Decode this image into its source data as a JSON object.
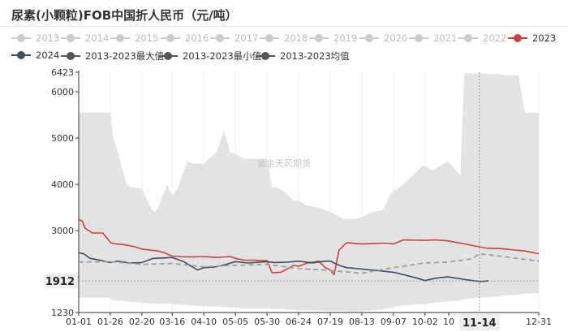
{
  "header": {
    "title": "尿素(小颗粒)FOB中国折人民币（元/吨）"
  },
  "colors": {
    "band": "#e3e3e3",
    "inactive": "#cccccc",
    "series_2023": "#d04040",
    "series_2024": "#3f4e5e",
    "series_avg": "#a0a0a0",
    "legend_dark": "#3f4e5e",
    "legend_mid": "#555555",
    "tooltip_tag": "#eeeeee"
  },
  "legend": [
    {
      "label": "2013",
      "active": false
    },
    {
      "label": "2014",
      "active": false
    },
    {
      "label": "2015",
      "active": false
    },
    {
      "label": "2016",
      "active": false
    },
    {
      "label": "2017",
      "active": false
    },
    {
      "label": "2018",
      "active": false
    },
    {
      "label": "2019",
      "active": false
    },
    {
      "label": "2020",
      "active": false
    },
    {
      "label": "2021",
      "active": false
    },
    {
      "label": "2022",
      "active": false
    },
    {
      "label": "2023",
      "active": true
    },
    {
      "label": "2024",
      "active": true
    },
    {
      "label": "2013-2023最大值",
      "active": true
    },
    {
      "label": "2013-2023最小值",
      "active": true
    },
    {
      "label": "2013-2023均值",
      "active": true
    }
  ],
  "watermark": "紫金天风期货",
  "chart_data": {
    "type": "line",
    "title": "尿素(小颗粒)FOB中国折人民币（元/吨）",
    "xlabel": "",
    "ylabel": "",
    "x_ticks": [
      "01-01",
      "01-26",
      "02-20",
      "03-16",
      "04-10",
      "05-05",
      "05-30",
      "06-24",
      "07-19",
      "08-13",
      "09-07",
      "10-02",
      "10",
      "11-14",
      "12-31"
    ],
    "y_ticks": [
      "1230",
      "2000",
      "3000",
      "4000",
      "5000",
      "6000",
      "6423"
    ],
    "ylim": [
      1230,
      6423
    ],
    "crosshair": {
      "x_label": "11-14",
      "y_label": "1912"
    },
    "grid": "vertical",
    "band": {
      "name": "2013-2023 最大值/最小值",
      "x": [
        "01-01",
        "01-26",
        "01-28",
        "02-08",
        "02-10",
        "02-20",
        "02-27",
        "03-02",
        "03-04",
        "03-12",
        "03-16",
        "03-20",
        "03-28",
        "04-01",
        "04-10",
        "04-20",
        "04-26",
        "05-01",
        "05-05",
        "05-12",
        "05-30",
        "06-03",
        "06-10",
        "06-20",
        "06-24",
        "06-30",
        "07-10",
        "07-19",
        "07-30",
        "08-08",
        "08-13",
        "08-22",
        "08-30",
        "09-05",
        "09-07",
        "09-15",
        "09-30",
        "10-02",
        "10-08",
        "10-20",
        "10-30",
        "11-02",
        "11-14",
        "11-30",
        "12-05",
        "12-15",
        "12-20",
        "12-31"
      ],
      "max": [
        5550,
        5550,
        5050,
        4000,
        3950,
        3900,
        3500,
        3400,
        3450,
        4000,
        3750,
        3900,
        4500,
        4450,
        4450,
        4700,
        5150,
        4700,
        4650,
        4550,
        4550,
        3950,
        3900,
        3650,
        3650,
        3550,
        3500,
        3400,
        3250,
        3250,
        3300,
        3400,
        3450,
        3800,
        3850,
        4000,
        4400,
        4400,
        4300,
        4500,
        4200,
        6400,
        6400,
        6380,
        6350,
        6350,
        5550,
        5550
      ],
      "min": [
        1550,
        1550,
        1490,
        1480,
        1460,
        1440,
        1430,
        1420,
        1420,
        1420,
        1410,
        1400,
        1390,
        1380,
        1370,
        1360,
        1350,
        1340,
        1330,
        1320,
        1320,
        1310,
        1300,
        1290,
        1280,
        1280,
        1270,
        1260,
        1260,
        1250,
        1260,
        1280,
        1300,
        1330,
        1350,
        1380,
        1410,
        1410,
        1440,
        1470,
        1500,
        1520,
        1550,
        1580,
        1600,
        1620,
        1640,
        1650
      ]
    },
    "series": [
      {
        "name": "2023",
        "x": [
          "01-01",
          "01-04",
          "01-06",
          "01-12",
          "01-20",
          "01-26",
          "01-28",
          "02-05",
          "02-15",
          "02-20",
          "02-27",
          "03-05",
          "03-10",
          "03-16",
          "03-22",
          "03-30",
          "04-10",
          "04-20",
          "05-01",
          "05-05",
          "05-12",
          "05-20",
          "05-30",
          "06-03",
          "06-10",
          "06-20",
          "06-24",
          "07-01",
          "07-10",
          "07-15",
          "07-19",
          "07-22",
          "07-26",
          "08-01",
          "08-13",
          "08-20",
          "09-01",
          "09-07",
          "09-15",
          "10-02",
          "10-10",
          "10-20",
          "11-01",
          "11-14",
          "11-20",
          "12-01",
          "12-20",
          "12-31"
        ],
        "y": [
          3250,
          3200,
          3050,
          2950,
          2950,
          2750,
          2720,
          2700,
          2650,
          2600,
          2580,
          2560,
          2520,
          2450,
          2440,
          2430,
          2440,
          2420,
          2440,
          2400,
          2360,
          2360,
          2350,
          2090,
          2100,
          2250,
          2230,
          2300,
          2340,
          2200,
          2150,
          2050,
          2580,
          2740,
          2710,
          2720,
          2730,
          2710,
          2800,
          2790,
          2800,
          2780,
          2720,
          2650,
          2620,
          2610,
          2560,
          2500
        ]
      },
      {
        "name": "2024",
        "x": [
          "01-01",
          "01-05",
          "01-10",
          "01-20",
          "01-26",
          "02-01",
          "02-10",
          "02-20",
          "03-01",
          "03-10",
          "03-16",
          "03-25",
          "04-05",
          "04-10",
          "04-18",
          "04-25",
          "05-05",
          "05-15",
          "05-30",
          "06-05",
          "06-15",
          "06-24",
          "07-05",
          "07-15",
          "07-19",
          "07-26",
          "08-01",
          "08-13",
          "08-20",
          "08-28",
          "09-07",
          "09-15",
          "09-25",
          "10-02",
          "10-10",
          "10-20",
          "11-01",
          "11-14",
          "11-21"
        ],
        "y": [
          2520,
          2500,
          2400,
          2350,
          2310,
          2340,
          2300,
          2310,
          2400,
          2410,
          2420,
          2330,
          2150,
          2200,
          2210,
          2250,
          2330,
          2300,
          2330,
          2310,
          2320,
          2340,
          2300,
          2340,
          2340,
          2250,
          2200,
          2170,
          2150,
          2130,
          2100,
          2050,
          1980,
          1920,
          1970,
          2000,
          1950,
          1900,
          1912
        ]
      },
      {
        "name": "2013-2023均值",
        "style": "dashed",
        "x": [
          "01-01",
          "01-26",
          "02-20",
          "03-16",
          "04-10",
          "05-05",
          "05-30",
          "06-24",
          "07-19",
          "08-13",
          "09-07",
          "10-02",
          "10-20",
          "11-08",
          "11-14",
          "11-30",
          "12-31"
        ],
        "y": [
          2320,
          2330,
          2270,
          2290,
          2220,
          2250,
          2270,
          2180,
          2140,
          2080,
          2200,
          2300,
          2320,
          2390,
          2500,
          2450,
          2340
        ]
      }
    ]
  }
}
